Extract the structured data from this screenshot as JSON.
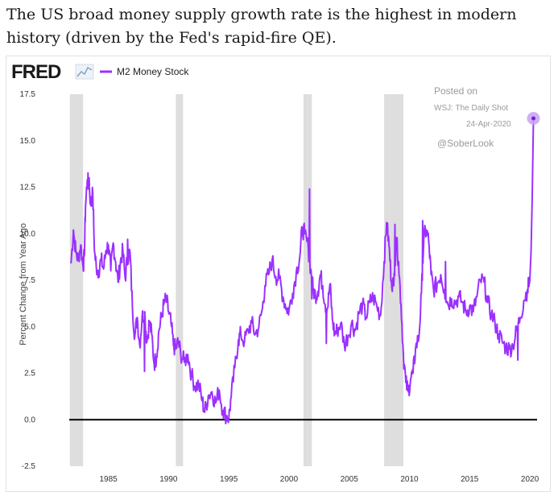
{
  "headline": "The US broad money supply growth rate is the highest in modern history (driven by the Fed's rapid-fire QE).",
  "chart_data": {
    "type": "line",
    "logo": "FRED",
    "title": "",
    "series": [
      {
        "name": "M2 Money Stock",
        "color": "#9b30ff",
        "x": [
          1981.9,
          1982.1,
          1982.3,
          1982.5,
          1982.7,
          1982.9,
          1983.0,
          1983.1,
          1983.25,
          1983.4,
          1983.55,
          1983.7,
          1983.85,
          1984.0,
          1984.2,
          1984.4,
          1984.6,
          1984.8,
          1985.0,
          1985.2,
          1985.4,
          1985.6,
          1985.8,
          1986.0,
          1986.2,
          1986.4,
          1986.6,
          1986.8,
          1987.0,
          1987.2,
          1987.4,
          1987.6,
          1987.8,
          1988.0,
          1988.2,
          1988.4,
          1988.6,
          1988.8,
          1989.0,
          1989.2,
          1989.4,
          1989.6,
          1989.8,
          1990.0,
          1990.2,
          1990.4,
          1990.6,
          1990.8,
          1991.0,
          1991.3,
          1991.6,
          1991.9,
          1992.2,
          1992.5,
          1992.8,
          1993.0,
          1993.3,
          1993.6,
          1993.9,
          1994.2,
          1994.5,
          1994.8,
          1995.0,
          1995.2,
          1995.5,
          1995.8,
          1996.0,
          1996.3,
          1996.6,
          1996.9,
          1997.2,
          1997.5,
          1997.8,
          1998.0,
          1998.3,
          1998.6,
          1998.9,
          1999.2,
          1999.5,
          1999.8,
          2000.0,
          2000.3,
          2000.6,
          2000.9,
          2001.1,
          2001.3,
          2001.6,
          2001.8,
          2002.0,
          2002.2,
          2002.4,
          2002.6,
          2002.8,
          2003.0,
          2003.2,
          2003.4,
          2003.6,
          2003.8,
          2004.0,
          2004.3,
          2004.6,
          2004.9,
          2005.2,
          2005.5,
          2005.8,
          2006.1,
          2006.4,
          2006.7,
          2007.0,
          2007.3,
          2007.6,
          2007.9,
          2008.1,
          2008.3,
          2008.5,
          2008.7,
          2008.9,
          2009.1,
          2009.3,
          2009.5,
          2009.7,
          2009.9,
          2010.1,
          2010.3,
          2010.5,
          2010.8,
          2011.0,
          2011.2,
          2011.4,
          2011.6,
          2011.8,
          2012.0,
          2012.3,
          2012.6,
          2012.9,
          2013.2,
          2013.5,
          2013.8,
          2014.1,
          2014.4,
          2014.7,
          2015.0,
          2015.3,
          2015.6,
          2015.9,
          2016.2,
          2016.5,
          2016.8,
          2017.1,
          2017.4,
          2017.7,
          2018.0,
          2018.3,
          2018.6,
          2018.9,
          2019.2,
          2019.5,
          2019.8,
          2020.0,
          2020.1,
          2020.2,
          2020.3
        ],
        "values": [
          8.4,
          10.2,
          9.0,
          8.6,
          9.4,
          8.2,
          8.8,
          11.5,
          12.9,
          12.6,
          11.5,
          12.2,
          9.0,
          8.2,
          8.0,
          8.6,
          8.1,
          9.1,
          9.4,
          8.0,
          9.5,
          8.5,
          7.4,
          8.5,
          9.1,
          7.6,
          8.8,
          9.0,
          6.0,
          4.5,
          5.5,
          4.0,
          5.5,
          5.8,
          4.2,
          5.3,
          4.6,
          3.0,
          3.4,
          4.8,
          5.5,
          6.2,
          6.5,
          5.8,
          5.2,
          4.0,
          3.8,
          4.2,
          3.6,
          3.1,
          3.5,
          2.4,
          1.8,
          1.9,
          1.0,
          0.4,
          1.3,
          1.5,
          0.9,
          1.6,
          0.5,
          0.2,
          0.1,
          1.2,
          2.8,
          4.3,
          4.6,
          4.2,
          4.8,
          5.2,
          4.6,
          5.0,
          6.0,
          7.2,
          7.8,
          8.6,
          7.7,
          7.6,
          6.6,
          6.0,
          5.9,
          6.8,
          7.9,
          8.8,
          10.3,
          10.0,
          9.2,
          8.1,
          7.0,
          6.7,
          6.9,
          7.8,
          7.2,
          6.2,
          6.0,
          7.3,
          5.4,
          4.6,
          4.8,
          5.2,
          4.0,
          4.5,
          5.2,
          4.8,
          5.7,
          6.2,
          5.5,
          6.3,
          6.6,
          6.1,
          5.6,
          8.5,
          10.6,
          9.4,
          7.5,
          7.2,
          9.8,
          8.5,
          6.2,
          3.5,
          2.0,
          1.5,
          2.2,
          2.5,
          3.8,
          4.5,
          6.8,
          9.8,
          10.2,
          9.6,
          7.8,
          7.0,
          7.3,
          7.8,
          7.0,
          6.2,
          6.5,
          6.3,
          6.6,
          6.3,
          5.8,
          6.1,
          5.8,
          6.6,
          7.5,
          7.4,
          6.3,
          5.7,
          5.2,
          4.6,
          4.2,
          3.9,
          3.8,
          4.0,
          4.8,
          5.5,
          6.4,
          7.0,
          7.5,
          9.0,
          12.0,
          16.2
        ],
        "spike_points": [
          {
            "x": 1983.4,
            "y": 13.0
          },
          {
            "x": 1986.6,
            "y": 9.7
          },
          {
            "x": 1988.0,
            "y": 2.6
          },
          {
            "x": 2001.7,
            "y": 12.4
          },
          {
            "x": 2001.9,
            "y": 6.5
          },
          {
            "x": 2003.1,
            "y": 4.1
          },
          {
            "x": 2008.8,
            "y": 10.5
          },
          {
            "x": 2011.1,
            "y": 10.7
          },
          {
            "x": 2013.0,
            "y": 8.5
          },
          {
            "x": 2019.0,
            "y": 3.2
          }
        ]
      }
    ],
    "xlim": [
      1981.75,
      2020.6
    ],
    "ylim": [
      -2.5,
      17.5
    ],
    "xticks": [
      "1985",
      "1990",
      "1995",
      "2000",
      "2005",
      "2010",
      "2015",
      "2020"
    ],
    "xtick_values": [
      1985,
      1990,
      1995,
      2000,
      2005,
      2010,
      2015,
      2020
    ],
    "yticks": [
      "-2.5",
      "0.0",
      "2.5",
      "5.0",
      "7.5",
      "10.0",
      "12.5",
      "15.0",
      "17.5"
    ],
    "ytick_values": [
      -2.5,
      0,
      2.5,
      5,
      7.5,
      10,
      12.5,
      15,
      17.5
    ],
    "ylabel": "Percent Change from Year Ago",
    "xlabel": "",
    "recessions": [
      [
        1981.8,
        1982.9
      ],
      [
        1990.6,
        1991.2
      ],
      [
        2001.2,
        2001.9
      ],
      [
        2007.9,
        2009.5
      ]
    ],
    "zero_line": 0,
    "last_point": {
      "x": 2020.3,
      "y": 16.2
    },
    "annotation": {
      "posted_on": "Posted on",
      "source": "WSJ: The Daily Shot",
      "date": "24-Apr-2020",
      "handle": "@SoberLook"
    }
  }
}
